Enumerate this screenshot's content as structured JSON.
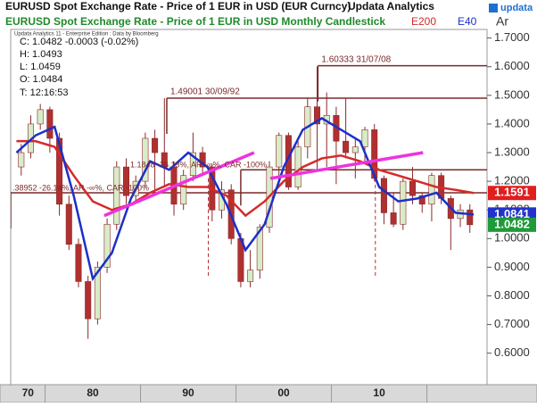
{
  "chart_data": {
    "type": "candlestick",
    "title": "EURUSD Spot Exchange Rate - Price of 1 EUR in USD (EUR Curncy)",
    "brand": "Updata Analytics",
    "subtitle": "EURUSD Spot Exchange Rate - Price of 1 EUR in USD Monthly Candlestick",
    "axis_label": "Ar",
    "logo": "updata",
    "info": {
      "source": "Updata Analytics 11 - Enterprise Edition : Data by Bloomberg",
      "lines": [
        "C: 1.0482  -0.0003 (-0.02%)",
        "H: 1.0493",
        "L: 1.0459",
        "O: 1.0484",
        "T: 12:16:53"
      ]
    },
    "notes": [
      ".38952 -26.14%, AR -∞%, CAR -100%",
      "1.1848 -26.13%, AR -∞%, CAR -100%"
    ],
    "xlim": [
      1976.4,
      2026.3
    ],
    "ylim": [
      0.49,
      1.73
    ],
    "xticks": [
      {
        "value": 1970,
        "label": "70"
      },
      {
        "value": 1980,
        "label": "80"
      },
      {
        "value": 1990,
        "label": "90"
      },
      {
        "value": 2000,
        "label": "00"
      },
      {
        "value": 2010,
        "label": "10"
      },
      {
        "value": 2020,
        "label": null
      }
    ],
    "yticks": [
      {
        "value": 0.6,
        "label": "0.6000"
      },
      {
        "value": 0.7,
        "label": "0.7000"
      },
      {
        "value": 0.8,
        "label": "0.8000"
      },
      {
        "value": 0.9,
        "label": "0.9000"
      },
      {
        "value": 1.0,
        "label": "1.0000"
      },
      {
        "value": 1.1,
        "label": "1.1000"
      },
      {
        "value": 1.2,
        "label": "1.2000"
      },
      {
        "value": 1.3,
        "label": "1.3000"
      },
      {
        "value": 1.4,
        "label": "1.4000"
      },
      {
        "value": 1.5,
        "label": "1.5000"
      },
      {
        "value": 1.6,
        "label": "1.6000"
      },
      {
        "value": 1.7,
        "label": "1.7000"
      }
    ],
    "candles": {
      "up_color": "#d8ecc8",
      "down_color": "#b03030",
      "wick_color": "#8a2a2a",
      "x": [
        1977.5,
        1978.5,
        1979.5,
        1980.5,
        1981.5,
        1982.5,
        1983.5,
        1984.5,
        1985.5,
        1986.5,
        1987.5,
        1988.5,
        1989.5,
        1990.5,
        1991.5,
        1992.5,
        1993.5,
        1994.5,
        1995.5,
        1996.5,
        1997.5,
        1998.5,
        1999.5,
        2000.5,
        2001.5,
        2002.5,
        2003.5,
        2004.5,
        2005.5,
        2006.5,
        2007.5,
        2008.5,
        2009.5,
        2010.5,
        2011.5,
        2012.5,
        2013.5,
        2014.5,
        2015.5,
        2016.5,
        2017.5,
        2018.5,
        2019.5,
        2020.5,
        2021.5,
        2022.5,
        2023.5,
        2024.5
      ],
      "open": [
        1.25,
        1.3,
        1.4,
        1.45,
        1.35,
        1.12,
        0.98,
        0.85,
        0.72,
        0.9,
        1.05,
        1.25,
        1.15,
        1.2,
        1.35,
        1.3,
        1.25,
        1.12,
        1.22,
        1.3,
        1.25,
        1.1,
        1.17,
        1.0,
        0.85,
        0.89,
        1.04,
        1.25,
        1.36,
        1.18,
        1.32,
        1.46,
        1.4,
        1.43,
        1.34,
        1.3,
        1.32,
        1.38,
        1.21,
        1.09,
        1.05,
        1.2,
        1.15,
        1.12,
        1.22,
        1.14,
        1.07,
        1.1
      ],
      "high": [
        1.33,
        1.43,
        1.47,
        1.46,
        1.37,
        1.15,
        1.0,
        0.87,
        0.92,
        1.07,
        1.27,
        1.28,
        1.22,
        1.37,
        1.38,
        1.49,
        1.27,
        1.24,
        1.37,
        1.32,
        1.26,
        1.2,
        1.19,
        1.02,
        0.96,
        1.05,
        1.27,
        1.37,
        1.37,
        1.34,
        1.49,
        1.6,
        1.51,
        1.46,
        1.49,
        1.35,
        1.39,
        1.4,
        1.22,
        1.16,
        1.21,
        1.25,
        1.16,
        1.23,
        1.23,
        1.15,
        1.12,
        1.12
      ],
      "low": [
        1.22,
        1.28,
        1.38,
        1.3,
        1.08,
        0.96,
        0.83,
        0.65,
        0.7,
        0.88,
        1.03,
        1.12,
        1.13,
        1.18,
        1.16,
        1.18,
        1.08,
        1.1,
        1.2,
        1.22,
        1.06,
        1.07,
        0.98,
        0.83,
        0.83,
        0.86,
        1.02,
        1.18,
        1.17,
        1.17,
        1.28,
        1.24,
        1.25,
        1.19,
        1.28,
        1.21,
        1.27,
        1.2,
        1.05,
        1.04,
        1.03,
        1.12,
        1.09,
        1.06,
        1.12,
        0.96,
        1.04,
        1.02
      ],
      "close": [
        1.3,
        1.4,
        1.45,
        1.35,
        1.12,
        0.98,
        0.85,
        0.72,
        0.9,
        1.05,
        1.25,
        1.15,
        1.2,
        1.35,
        1.3,
        1.25,
        1.12,
        1.22,
        1.3,
        1.25,
        1.1,
        1.17,
        1.0,
        0.85,
        0.89,
        1.04,
        1.25,
        1.36,
        1.18,
        1.32,
        1.46,
        1.4,
        1.43,
        1.34,
        1.3,
        1.32,
        1.38,
        1.21,
        1.09,
        1.05,
        1.2,
        1.15,
        1.12,
        1.22,
        1.14,
        1.07,
        1.1,
        1.0482
      ]
    },
    "series": [
      {
        "name": "E200",
        "color": "#d42a2a",
        "x": [
          1977,
          1979,
          1981,
          1983,
          1985,
          1987,
          1989,
          1991,
          1993,
          1995,
          1997,
          1999,
          2001,
          2003,
          2005,
          2007,
          2009,
          2011,
          2013,
          2015,
          2017,
          2019,
          2021,
          2023,
          2024.9
        ],
        "values": [
          1.34,
          1.34,
          1.32,
          1.22,
          1.13,
          1.1,
          1.12,
          1.16,
          1.19,
          1.18,
          1.18,
          1.15,
          1.08,
          1.13,
          1.2,
          1.25,
          1.28,
          1.29,
          1.27,
          1.24,
          1.22,
          1.2,
          1.18,
          1.17,
          1.1591
        ]
      },
      {
        "name": "E40",
        "color": "#1c2fc8",
        "x": [
          1977,
          1979,
          1981,
          1983,
          1985,
          1987,
          1989,
          1991,
          1993,
          1995,
          1997,
          1999,
          2001,
          2003,
          2005,
          2007,
          2009,
          2011,
          2013,
          2015,
          2017,
          2019,
          2021,
          2023,
          2024.9
        ],
        "values": [
          1.3,
          1.36,
          1.39,
          1.15,
          0.86,
          0.95,
          1.14,
          1.27,
          1.24,
          1.3,
          1.25,
          1.12,
          0.96,
          1.05,
          1.25,
          1.38,
          1.42,
          1.38,
          1.34,
          1.18,
          1.13,
          1.14,
          1.16,
          1.09,
          1.0841
        ]
      }
    ],
    "price_tags": [
      {
        "value": 1.1591,
        "color": "#e01e1e"
      },
      {
        "value": 1.0841,
        "color": "#2233cc"
      },
      {
        "value": 1.0482,
        "color": "#1f9a3a"
      }
    ],
    "levels": [
      {
        "value": 1.60333,
        "start": 2008.58,
        "label": "1.60333  31/07/08"
      },
      {
        "value": 1.49001,
        "start": 1992.75,
        "label": "1.49001  30/09/92"
      },
      {
        "value": 1.24,
        "start": 2000.5,
        "label": null
      },
      {
        "value": 1.16,
        "start": 1976.4,
        "label": null
      }
    ],
    "level_color": "#7a2a2a",
    "trendline_color": "#ee33dd",
    "trendlines": [
      {
        "x": [
          1986.2,
          2001.9
        ],
        "y": [
          1.08,
          1.3
        ]
      },
      {
        "x": [
          2003.6,
          2019.6
        ],
        "y": [
          1.21,
          1.3
        ]
      }
    ],
    "event_lines": {
      "x": [
        1997.1,
        2014.6
      ],
      "top": 1.21,
      "bottom": 0.87,
      "color": "#b03030"
    }
  }
}
